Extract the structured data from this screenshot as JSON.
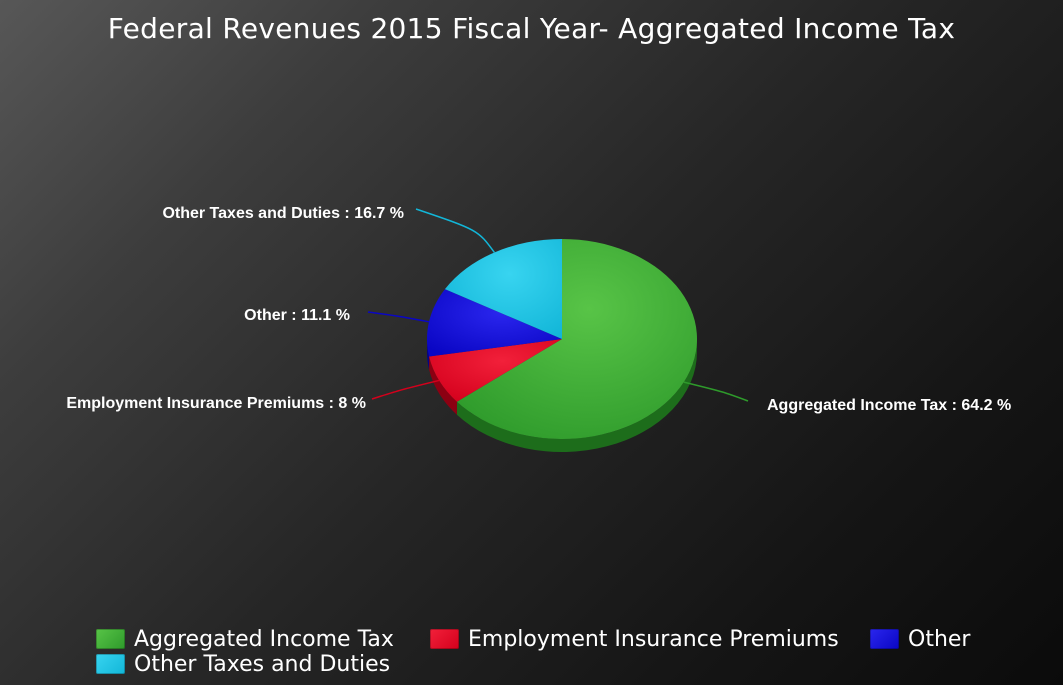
{
  "chart_data": {
    "type": "pie",
    "title": "Federal Revenues 2015 Fiscal Year- Aggregated Income Tax",
    "slices": [
      {
        "label": "Aggregated Income Tax",
        "value": 64.2,
        "value_text": "64.2",
        "color": "#2e9a2b",
        "light": "#58c447",
        "dark": "#1d6d1b"
      },
      {
        "label": "Employment Insurance Premiums",
        "value": 8,
        "value_text": "8",
        "color": "#d4001c",
        "light": "#f2203a",
        "dark": "#8c0012"
      },
      {
        "label": "Other",
        "value": 11.1,
        "value_text": "11.1",
        "color": "#0a06c4",
        "light": "#2a26ee",
        "dark": "#060385"
      },
      {
        "label": "Other Taxes and Duties",
        "value": 16.7,
        "value_text": "16.7",
        "color": "#12b6d8",
        "light": "#38d4f0",
        "dark": "#0b8098"
      }
    ],
    "legend": {
      "position": "bottom",
      "items": [
        "Aggregated Income Tax",
        "Employment Insurance Premiums",
        "Other",
        "Other Taxes and Duties"
      ]
    },
    "label_separator": " : ",
    "label_suffix": " %"
  }
}
